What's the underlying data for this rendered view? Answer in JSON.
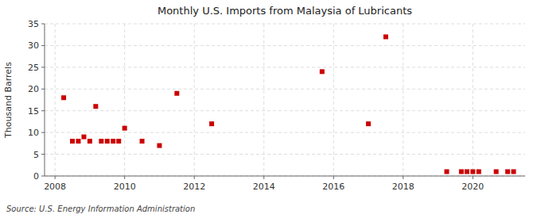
{
  "chart_data": {
    "type": "scatter",
    "title": "Monthly U.S. Imports from Malaysia of Lubricants",
    "y_label": "Thousand Barrels",
    "source": "Source: U.S. Energy Information Administration",
    "x": [
      2008.25,
      2008.5,
      2008.67,
      2008.83,
      2009.0,
      2009.17,
      2009.33,
      2009.5,
      2009.67,
      2009.83,
      2010.0,
      2010.5,
      2011.0,
      2011.5,
      2012.5,
      2015.67,
      2017.0,
      2017.5,
      2019.25,
      2019.67,
      2019.83,
      2020.0,
      2020.17,
      2020.67,
      2021.0,
      2021.17
    ],
    "values": [
      18,
      8,
      8,
      9,
      8,
      16,
      8,
      8,
      8,
      8,
      11,
      8,
      7,
      19,
      12,
      24,
      12,
      32,
      1,
      1,
      1,
      1,
      1,
      1,
      1,
      1
    ],
    "color": "#cc0000",
    "marker": "square",
    "xlim": [
      2007.7,
      2021.5
    ],
    "ylim": [
      0,
      35
    ],
    "xticks": [
      2008,
      2010,
      2012,
      2014,
      2016,
      2018,
      2020
    ],
    "yticks": [
      0,
      5,
      10,
      15,
      20,
      25,
      30,
      35
    ],
    "grid": true
  }
}
